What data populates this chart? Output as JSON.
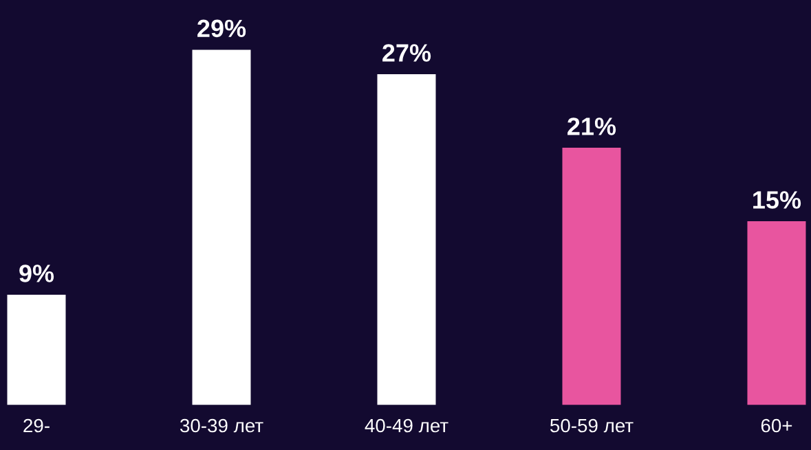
{
  "chart_data": {
    "type": "bar",
    "categories": [
      "29-",
      "30-39 лет",
      "40-49 лет",
      "50-59 лет",
      "60+"
    ],
    "values": [
      9,
      29,
      27,
      21,
      15
    ],
    "colors": [
      "#ffffff",
      "#ffffff",
      "#ffffff",
      "#e8559f",
      "#e8559f"
    ],
    "value_labels": [
      "9%",
      "29%",
      "27%",
      "21%",
      "15%"
    ],
    "tick_labels": "x",
    "grid": false,
    "legend": false
  }
}
